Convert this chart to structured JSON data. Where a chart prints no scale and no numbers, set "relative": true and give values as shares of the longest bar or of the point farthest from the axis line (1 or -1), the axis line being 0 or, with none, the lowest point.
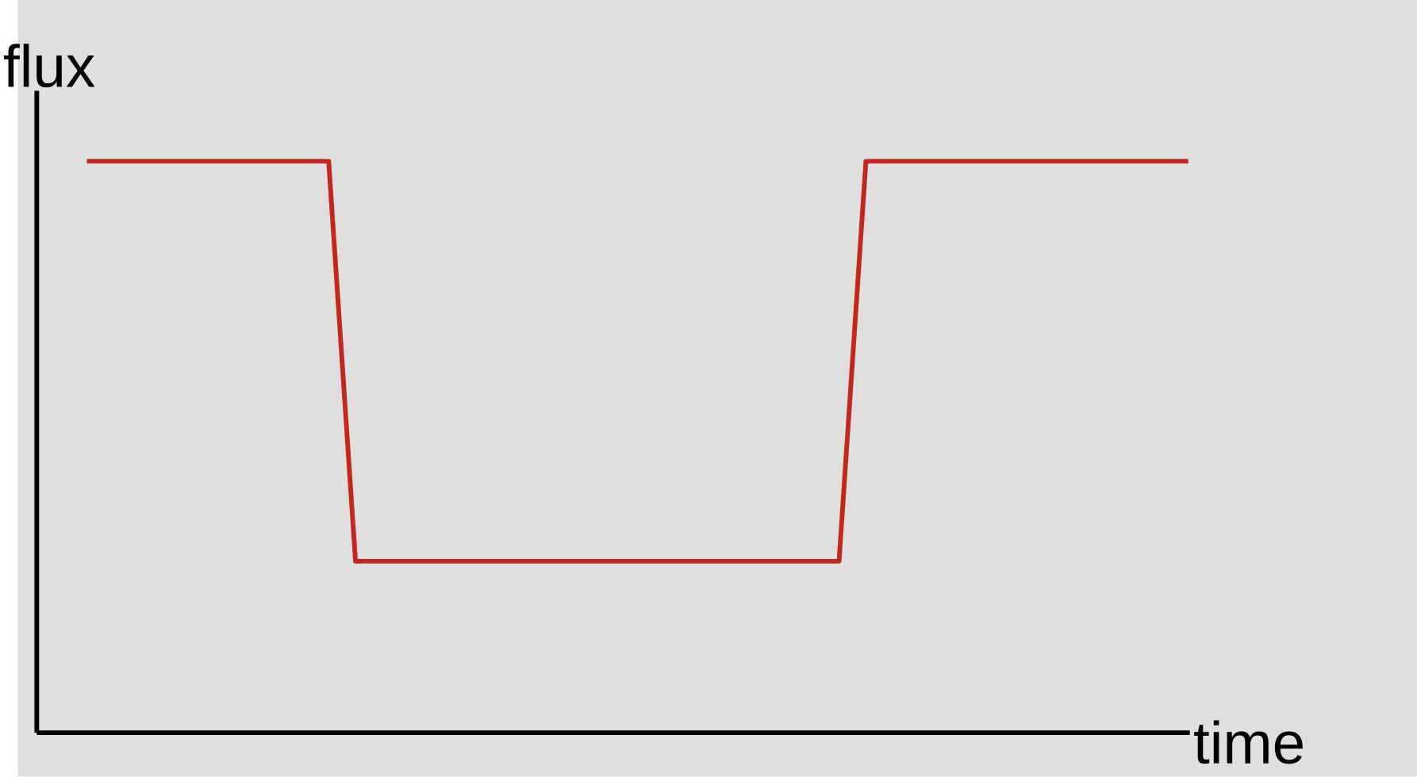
{
  "chart_data": {
    "type": "line",
    "relative": true,
    "xlabel": "time",
    "ylabel": "flux",
    "categories": [
      null,
      null,
      null,
      null,
      null,
      null,
      null,
      null,
      null,
      null,
      null,
      null,
      null,
      null,
      null,
      null,
      null,
      null,
      null,
      null,
      null,
      null,
      null,
      null,
      null,
      null,
      null,
      null,
      null,
      null,
      null,
      null,
      null,
      null,
      null,
      null,
      null,
      null,
      null,
      null,
      null,
      null
    ],
    "series": [
      {
        "color": "#c0281c",
        "values": [
          1,
          1,
          1,
          1,
          1,
          1,
          1,
          1,
          1,
          1,
          0.3,
          0.3,
          0.3,
          0.3,
          0.3,
          0.3,
          0.3,
          0.3,
          0.3,
          0.3,
          0.3,
          0.3,
          0.3,
          0.3,
          0.3,
          0.3,
          0.3,
          0.3,
          0.3,
          1,
          1,
          1,
          1,
          1,
          1,
          1,
          1,
          1,
          1,
          1,
          1,
          1
        ]
      }
    ]
  }
}
